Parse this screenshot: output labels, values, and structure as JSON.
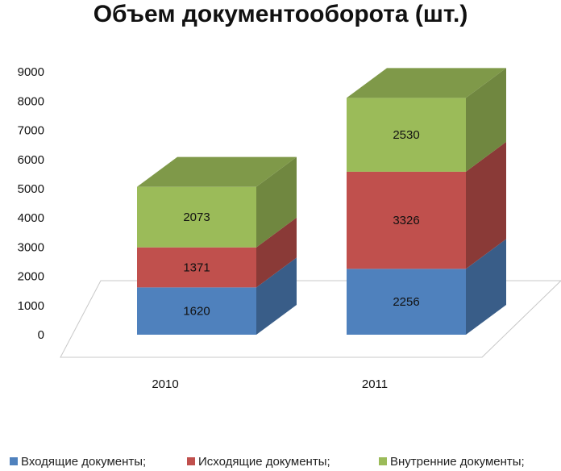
{
  "chart_data": {
    "type": "bar",
    "stacked": true,
    "style": "3d-column",
    "title": "Объем документооборота (шт.)",
    "categories": [
      "2010",
      "2011"
    ],
    "series": [
      {
        "name": "Входящие документы;",
        "values": [
          1620,
          2256
        ],
        "color": "#4f81bd"
      },
      {
        "name": "Исходящие документы;",
        "values": [
          1371,
          3326
        ],
        "color": "#c0504d"
      },
      {
        "name": "Внутренние документы;",
        "values": [
          2073,
          2530
        ],
        "color": "#9bbb59"
      }
    ],
    "yticks": [
      0,
      1000,
      2000,
      3000,
      4000,
      5000,
      6000,
      7000,
      8000,
      9000
    ],
    "ylim": [
      0,
      9000
    ],
    "grid": false,
    "legend_position": "bottom"
  }
}
